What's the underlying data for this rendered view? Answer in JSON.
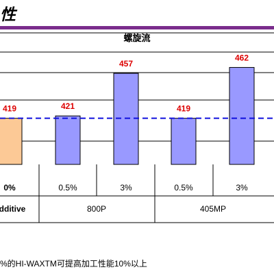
{
  "page": {
    "heading": "性",
    "footnote": "%的HI-WAXTM可提高加工性能10%以上"
  },
  "chart_data": {
    "type": "bar",
    "title": "螺旋流",
    "categories": [
      "0%",
      "0.5%",
      "3%",
      "0.5%",
      "3%"
    ],
    "values": [
      419,
      421,
      457,
      419,
      462
    ],
    "value_labels": [
      "419",
      "421",
      "457",
      "419",
      "462"
    ],
    "groups": [
      {
        "label": "dditive",
        "span": [
          0,
          0
        ]
      },
      {
        "label": "800P",
        "span": [
          1,
          2
        ]
      },
      {
        "label": "405MP",
        "span": [
          3,
          4
        ]
      }
    ],
    "baseline": 419,
    "ylim": [
      380,
      475
    ],
    "grid": true,
    "colors": {
      "reference_bar": "#fcc996",
      "bar": "#9999ff",
      "value_label": "#dd0000",
      "baseline": "#1010dd",
      "grid": "#000000"
    }
  }
}
